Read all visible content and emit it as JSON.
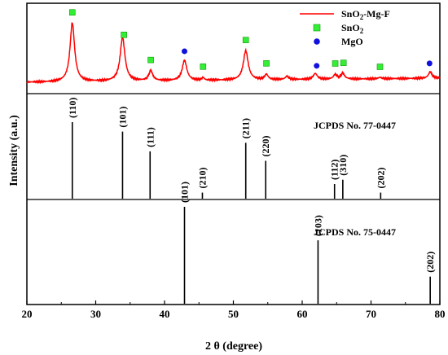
{
  "chart_data": {
    "type": "line",
    "xlabel_prefix": "2",
    "xlabel_symbol": "θ",
    "xlabel_suffix": "(degree)",
    "ylabel": "Intensity (a.u.)",
    "xlim": [
      20,
      80
    ],
    "xticks": [
      "20",
      "30",
      "40",
      "50",
      "60",
      "70",
      "80"
    ],
    "grid": false,
    "legend_position": "top-right",
    "colors": {
      "pattern": "#ff0000",
      "sno2_marker": "#33ee33",
      "mgo_marker": "#1111dd",
      "sticks": "#000000"
    },
    "legend": [
      {
        "base": "SnO",
        "sub": "2",
        "tail": "-Mg-F",
        "type": "line"
      },
      {
        "base": "SnO",
        "sub": "2",
        "tail": "",
        "type": "square"
      },
      {
        "base": "MgO",
        "sub": "",
        "tail": "",
        "type": "circle"
      }
    ],
    "pattern_peaks": [
      {
        "x": 26.6,
        "h": 0.9,
        "w": 0.4
      },
      {
        "x": 33.9,
        "h": 0.67,
        "w": 0.42
      },
      {
        "x": 38.0,
        "h": 0.15,
        "w": 0.35
      },
      {
        "x": 42.9,
        "h": 0.31,
        "w": 0.4
      },
      {
        "x": 45.6,
        "h": 0.04,
        "w": 0.2
      },
      {
        "x": 51.8,
        "h": 0.45,
        "w": 0.42
      },
      {
        "x": 54.8,
        "h": 0.08,
        "w": 0.3
      },
      {
        "x": 57.8,
        "h": 0.05,
        "w": 0.3
      },
      {
        "x": 61.9,
        "h": 0.09,
        "w": 0.35
      },
      {
        "x": 64.8,
        "h": 0.07,
        "w": 0.3
      },
      {
        "x": 65.9,
        "h": 0.09,
        "w": 0.3
      },
      {
        "x": 71.3,
        "h": 0.02,
        "w": 0.3
      },
      {
        "x": 78.6,
        "h": 0.1,
        "w": 0.3
      }
    ],
    "sno2_marker_x": [
      26.6,
      34.1,
      38.0,
      45.6,
      51.8,
      54.8,
      64.8,
      66.0,
      71.3
    ],
    "mgo_marker_x": [
      42.9,
      62.1,
      78.5
    ],
    "reference_panels": [
      {
        "label": "JCPDS No. 77-0447",
        "peaks": [
          {
            "x": 26.6,
            "h": 0.9,
            "hkl": "(110)"
          },
          {
            "x": 33.9,
            "h": 0.79,
            "hkl": "(101)"
          },
          {
            "x": 37.9,
            "h": 0.56,
            "hkl": "(111)"
          },
          {
            "x": 45.5,
            "h": 0.08,
            "hkl": "(210)"
          },
          {
            "x": 51.8,
            "h": 0.66,
            "hkl": "(211)"
          },
          {
            "x": 54.7,
            "h": 0.45,
            "hkl": "(220)"
          },
          {
            "x": 64.7,
            "h": 0.18,
            "hkl": "(112)"
          },
          {
            "x": 65.9,
            "h": 0.23,
            "hkl": "(310)"
          },
          {
            "x": 71.4,
            "h": 0.08,
            "hkl": "(202)"
          }
        ]
      },
      {
        "label": "JCPDS No. 75-0447",
        "peaks": [
          {
            "x": 42.9,
            "h": 0.35,
            "hkl": "(101)"
          },
          {
            "x": 62.3,
            "h": 0.23,
            "hkl": "(103)"
          },
          {
            "x": 78.6,
            "h": 0.1,
            "hkl": "(202)"
          }
        ]
      }
    ]
  }
}
